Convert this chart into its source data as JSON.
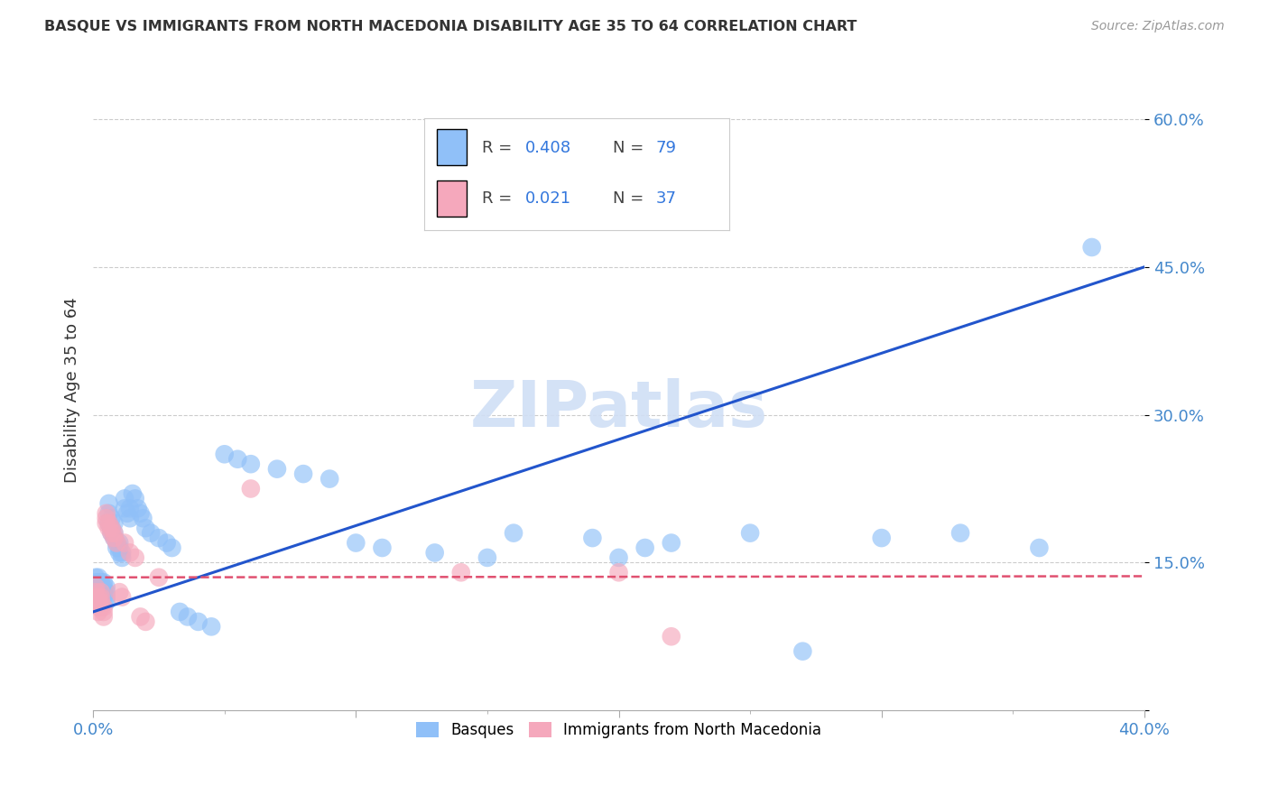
{
  "title": "BASQUE VS IMMIGRANTS FROM NORTH MACEDONIA DISABILITY AGE 35 TO 64 CORRELATION CHART",
  "source": "Source: ZipAtlas.com",
  "ylabel": "Disability Age 35 to 64",
  "x_min": 0.0,
  "x_max": 0.4,
  "y_min": 0.0,
  "y_max": 0.65,
  "basque_R": 0.408,
  "basque_N": 79,
  "macedonia_R": 0.021,
  "macedonia_N": 37,
  "basque_color": "#90c0f8",
  "macedonia_color": "#f5a8bc",
  "basque_line_color": "#2255cc",
  "macedonia_line_color": "#e05070",
  "watermark_color": "#d0dff5",
  "legend_basque": "Basques",
  "legend_macedonia": "Immigrants from North Macedonia",
  "basque_x": [
    0.001,
    0.001,
    0.001,
    0.001,
    0.002,
    0.002,
    0.002,
    0.002,
    0.002,
    0.003,
    0.003,
    0.003,
    0.003,
    0.003,
    0.004,
    0.004,
    0.004,
    0.004,
    0.005,
    0.005,
    0.005,
    0.005,
    0.006,
    0.006,
    0.006,
    0.007,
    0.007,
    0.007,
    0.008,
    0.008,
    0.008,
    0.009,
    0.009,
    0.01,
    0.01,
    0.01,
    0.011,
    0.011,
    0.012,
    0.012,
    0.013,
    0.014,
    0.014,
    0.015,
    0.016,
    0.017,
    0.018,
    0.019,
    0.02,
    0.022,
    0.025,
    0.028,
    0.03,
    0.033,
    0.036,
    0.04,
    0.045,
    0.05,
    0.055,
    0.06,
    0.07,
    0.08,
    0.09,
    0.1,
    0.11,
    0.13,
    0.15,
    0.16,
    0.18,
    0.19,
    0.2,
    0.21,
    0.22,
    0.25,
    0.27,
    0.3,
    0.33,
    0.36,
    0.38
  ],
  "basque_y": [
    0.12,
    0.125,
    0.13,
    0.135,
    0.115,
    0.12,
    0.125,
    0.13,
    0.135,
    0.11,
    0.115,
    0.12,
    0.125,
    0.13,
    0.115,
    0.12,
    0.125,
    0.13,
    0.11,
    0.115,
    0.12,
    0.125,
    0.19,
    0.2,
    0.21,
    0.18,
    0.185,
    0.195,
    0.175,
    0.18,
    0.19,
    0.165,
    0.17,
    0.16,
    0.165,
    0.17,
    0.155,
    0.16,
    0.205,
    0.215,
    0.2,
    0.195,
    0.205,
    0.22,
    0.215,
    0.205,
    0.2,
    0.195,
    0.185,
    0.18,
    0.175,
    0.17,
    0.165,
    0.1,
    0.095,
    0.09,
    0.085,
    0.26,
    0.255,
    0.25,
    0.245,
    0.24,
    0.235,
    0.17,
    0.165,
    0.16,
    0.155,
    0.18,
    0.56,
    0.175,
    0.155,
    0.165,
    0.17,
    0.18,
    0.06,
    0.175,
    0.18,
    0.165,
    0.47
  ],
  "macedonia_x": [
    0.001,
    0.001,
    0.001,
    0.001,
    0.002,
    0.002,
    0.002,
    0.002,
    0.003,
    0.003,
    0.003,
    0.003,
    0.004,
    0.004,
    0.004,
    0.005,
    0.005,
    0.005,
    0.006,
    0.006,
    0.007,
    0.007,
    0.008,
    0.008,
    0.009,
    0.01,
    0.011,
    0.012,
    0.014,
    0.016,
    0.018,
    0.02,
    0.025,
    0.06,
    0.14,
    0.2,
    0.22
  ],
  "macedonia_y": [
    0.11,
    0.115,
    0.12,
    0.125,
    0.1,
    0.105,
    0.11,
    0.115,
    0.105,
    0.11,
    0.115,
    0.12,
    0.095,
    0.1,
    0.105,
    0.2,
    0.19,
    0.195,
    0.185,
    0.19,
    0.18,
    0.185,
    0.175,
    0.18,
    0.17,
    0.12,
    0.115,
    0.17,
    0.16,
    0.155,
    0.095,
    0.09,
    0.135,
    0.225,
    0.14,
    0.14,
    0.075
  ]
}
